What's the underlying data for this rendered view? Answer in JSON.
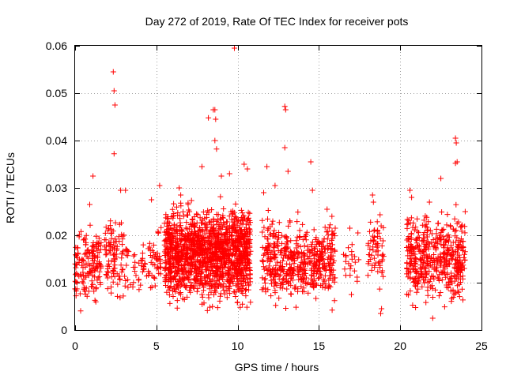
{
  "chart_data": {
    "type": "scatter",
    "title": "Day 272 of 2019, Rate Of TEC Index for receiver pots",
    "xlabel": "GPS time / hours",
    "ylabel": "ROTI / TECUs",
    "xlim": [
      0,
      25
    ],
    "ylim": [
      0,
      0.06
    ],
    "x_ticks": [
      0,
      5,
      10,
      15,
      20,
      25
    ],
    "x_tick_labels": [
      "0",
      "5",
      "10",
      "15",
      "20",
      "25"
    ],
    "y_ticks": [
      0,
      0.01,
      0.02,
      0.03,
      0.04,
      0.05,
      0.06
    ],
    "y_tick_labels": [
      "0",
      "0.01",
      "0.02",
      "0.03",
      "0.04",
      "0.05",
      "0.06"
    ],
    "grid": true,
    "marker": "plus",
    "color": "#ff0000",
    "series": [
      {
        "name": "ROTI",
        "points": [
          [
            2.35,
            0.0545
          ],
          [
            2.4,
            0.0505
          ],
          [
            2.45,
            0.0475
          ],
          [
            2.4,
            0.0372
          ],
          [
            9.8,
            0.0595
          ],
          [
            8.2,
            0.0448
          ],
          [
            8.5,
            0.0465
          ],
          [
            8.6,
            0.0465
          ],
          [
            8.65,
            0.0445
          ],
          [
            8.6,
            0.04
          ],
          [
            8.7,
            0.0382
          ],
          [
            12.9,
            0.0472
          ],
          [
            12.95,
            0.0465
          ],
          [
            12.9,
            0.0385
          ],
          [
            14.5,
            0.0355
          ],
          [
            23.4,
            0.0405
          ],
          [
            23.45,
            0.0395
          ],
          [
            23.5,
            0.0355
          ],
          [
            23.4,
            0.0352
          ],
          [
            11.8,
            0.0345
          ],
          [
            13.1,
            0.0335
          ],
          [
            10.4,
            0.035
          ],
          [
            10.6,
            0.034
          ],
          [
            22.5,
            0.032
          ],
          [
            7.8,
            0.0345
          ],
          [
            9.5,
            0.033
          ],
          [
            9.0,
            0.0325
          ],
          [
            1.1,
            0.0325
          ],
          [
            0.9,
            0.0265
          ],
          [
            3.1,
            0.0295
          ],
          [
            2.8,
            0.0295
          ],
          [
            4.7,
            0.0275
          ],
          [
            5.2,
            0.0305
          ],
          [
            18.9,
            0.0125
          ],
          [
            18.8,
            0.0035
          ],
          [
            18.85,
            0.0045
          ],
          [
            22.0,
            0.0025
          ],
          [
            16.9,
            0.0215
          ],
          [
            17.4,
            0.0205
          ],
          [
            17.2,
            0.0155
          ],
          [
            17.0,
            0.0075
          ],
          [
            20.6,
            0.0295
          ],
          [
            20.7,
            0.028
          ],
          [
            18.3,
            0.0285
          ],
          [
            18.35,
            0.027
          ],
          [
            15.5,
            0.0255
          ],
          [
            15.8,
            0.024
          ],
          [
            16.0,
            0.0215
          ],
          [
            14.6,
            0.0295
          ],
          [
            12.3,
            0.0305
          ],
          [
            11.6,
            0.029
          ],
          [
            6.4,
            0.03
          ],
          [
            6.5,
            0.0285
          ],
          [
            21.8,
            0.027
          ],
          [
            24.0,
            0.025
          ]
        ]
      }
    ],
    "clusters": [
      {
        "x": [
          0.0,
          1.6
        ],
        "y": [
          0.003,
          0.024
        ],
        "n": 150
      },
      {
        "x": [
          1.8,
          3.3
        ],
        "y": [
          0.004,
          0.027
        ],
        "n": 110
      },
      {
        "x": [
          3.4,
          4.4
        ],
        "y": [
          0.006,
          0.02
        ],
        "n": 30
      },
      {
        "x": [
          4.5,
          5.3
        ],
        "y": [
          0.005,
          0.026
        ],
        "n": 45
      },
      {
        "x": [
          5.5,
          10.8
        ],
        "y": [
          0.003,
          0.029
        ],
        "n": 1500
      },
      {
        "x": [
          11.5,
          16.0
        ],
        "y": [
          0.003,
          0.026
        ],
        "n": 520
      },
      {
        "x": [
          16.5,
          17.5
        ],
        "y": [
          0.007,
          0.021
        ],
        "n": 20
      },
      {
        "x": [
          18.0,
          19.0
        ],
        "y": [
          0.005,
          0.027
        ],
        "n": 60
      },
      {
        "x": [
          20.4,
          24.0
        ],
        "y": [
          0.003,
          0.028
        ],
        "n": 470
      }
    ]
  }
}
